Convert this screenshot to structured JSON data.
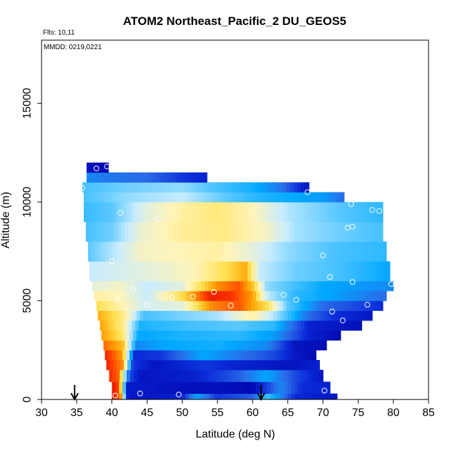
{
  "chart_data": {
    "type": "heatmap",
    "title": "ATOM2 Northeast_Pacific_2 DU_GEOS5",
    "subtitle_flights": "Flts: 10,11",
    "subtitle_dates": "MMDD: 0219,0221",
    "xlabel": "Latitude (deg N)",
    "ylabel": "Altitude (m)",
    "xlim": [
      30,
      85
    ],
    "ylim": [
      0,
      18200
    ],
    "x_ticks": [
      "30",
      "35",
      "40",
      "45",
      "50",
      "55",
      "60",
      "65",
      "70",
      "75",
      "80",
      "85"
    ],
    "y_ticks": [
      "0",
      "5000",
      "10000",
      "15000"
    ],
    "grid": false,
    "legend": "none",
    "colormap": [
      "#0000a8",
      "#0a2ad8",
      "#2a6ae8",
      "#00a8ff",
      "#5ac8ff",
      "#c8ecff",
      "#fff4b8",
      "#ffe050",
      "#ffa000",
      "#ff4000",
      "#d80000"
    ],
    "marker_latitudes": [
      34.7,
      61.2
    ],
    "bands": [
      {
        "alt": [
          0,
          300
        ],
        "lat": [
          40.0,
          72.0
        ],
        "stops": [
          [
            40.0,
            0.98
          ],
          [
            41.2,
            0.86
          ],
          [
            42.3,
            0.05
          ],
          [
            50,
            0.08
          ],
          [
            52,
            0.3
          ],
          [
            55,
            0.12
          ],
          [
            60,
            0.18
          ],
          [
            62,
            0.38
          ],
          [
            66,
            0.1
          ],
          [
            72,
            0.05
          ]
        ]
      },
      {
        "alt": [
          300,
          900
        ],
        "lat": [
          40.0,
          71.0
        ],
        "stops": [
          [
            40.0,
            0.97
          ],
          [
            41.0,
            0.9
          ],
          [
            42.2,
            0.07
          ],
          [
            50,
            0.04
          ],
          [
            56,
            0.04
          ],
          [
            60,
            0.02
          ],
          [
            64,
            0.25
          ],
          [
            67,
            0.1
          ],
          [
            71,
            0.08
          ]
        ]
      },
      {
        "alt": [
          900,
          1500
        ],
        "lat": [
          39.6,
          70.0
        ],
        "stops": [
          [
            39.6,
            0.93
          ],
          [
            41.0,
            0.86
          ],
          [
            42.5,
            0.15
          ],
          [
            44,
            0.05
          ],
          [
            52,
            0.08
          ],
          [
            58,
            0.18
          ],
          [
            62,
            0.3
          ],
          [
            66,
            0.15
          ],
          [
            70,
            0.05
          ]
        ]
      },
      {
        "alt": [
          1500,
          2000
        ],
        "lat": [
          39.2,
          69.5
        ],
        "stops": [
          [
            39.2,
            0.95
          ],
          [
            41.5,
            0.82
          ],
          [
            43.0,
            0.12
          ],
          [
            46,
            0.05
          ],
          [
            53,
            0.12
          ],
          [
            58,
            0.08
          ],
          [
            62,
            0.06
          ],
          [
            66,
            0.05
          ],
          [
            69.5,
            0.08
          ]
        ]
      },
      {
        "alt": [
          2000,
          2500
        ],
        "lat": [
          39.0,
          69.0
        ],
        "stops": [
          [
            39.0,
            0.94
          ],
          [
            41.5,
            0.8
          ],
          [
            43.2,
            0.1
          ],
          [
            47,
            0.12
          ],
          [
            53,
            0.3
          ],
          [
            58,
            0.22
          ],
          [
            63,
            0.15
          ],
          [
            66,
            0.06
          ],
          [
            69,
            0.03
          ]
        ]
      },
      {
        "alt": [
          2500,
          3000
        ],
        "lat": [
          38.8,
          70.5
        ],
        "stops": [
          [
            38.8,
            0.86
          ],
          [
            41.5,
            0.76
          ],
          [
            43.5,
            0.25
          ],
          [
            48,
            0.3
          ],
          [
            55,
            0.32
          ],
          [
            62,
            0.25
          ],
          [
            66,
            0.05
          ],
          [
            70.5,
            0.03
          ]
        ]
      },
      {
        "alt": [
          3000,
          3500
        ],
        "lat": [
          38.5,
          72.5
        ],
        "stops": [
          [
            38.5,
            0.8
          ],
          [
            41.5,
            0.68
          ],
          [
            43.8,
            0.3
          ],
          [
            50,
            0.33
          ],
          [
            58,
            0.35
          ],
          [
            63,
            0.28
          ],
          [
            68,
            0.08
          ],
          [
            72.5,
            0.02
          ]
        ]
      },
      {
        "alt": [
          3500,
          4000
        ],
        "lat": [
          38.3,
          75.5
        ],
        "stops": [
          [
            38.3,
            0.8
          ],
          [
            41.5,
            0.65
          ],
          [
            44.0,
            0.33
          ],
          [
            52,
            0.38
          ],
          [
            58,
            0.4
          ],
          [
            63,
            0.35
          ],
          [
            68,
            0.08
          ],
          [
            75.5,
            0.04
          ]
        ]
      },
      {
        "alt": [
          4000,
          4500
        ],
        "lat": [
          38.0,
          77.0
        ],
        "stops": [
          [
            38.0,
            0.78
          ],
          [
            41.5,
            0.66
          ],
          [
            44.5,
            0.38
          ],
          [
            55,
            0.47
          ],
          [
            60,
            0.62
          ],
          [
            63,
            0.48
          ],
          [
            68,
            0.2
          ],
          [
            72,
            0.1
          ],
          [
            77,
            0.06
          ]
        ]
      },
      {
        "alt": [
          4500,
          5000
        ],
        "lat": [
          37.8,
          78.5
        ],
        "stops": [
          [
            37.8,
            0.7
          ],
          [
            41.0,
            0.62
          ],
          [
            44.5,
            0.52
          ],
          [
            50,
            0.55
          ],
          [
            54,
            0.82
          ],
          [
            58,
            0.88
          ],
          [
            62,
            0.7
          ],
          [
            65,
            0.4
          ],
          [
            70,
            0.2
          ],
          [
            78.5,
            0.1
          ]
        ]
      },
      {
        "alt": [
          5000,
          5500
        ],
        "lat": [
          37.5,
          79.0
        ],
        "stops": [
          [
            37.5,
            0.62
          ],
          [
            41.0,
            0.6
          ],
          [
            45,
            0.5
          ],
          [
            50,
            0.7
          ],
          [
            54,
            0.95
          ],
          [
            57,
            0.92
          ],
          [
            60,
            0.8
          ],
          [
            62,
            0.5
          ],
          [
            66,
            0.35
          ],
          [
            72,
            0.28
          ],
          [
            79,
            0.2
          ]
        ]
      },
      {
        "alt": [
          5500,
          6000
        ],
        "lat": [
          37.2,
          80.0
        ],
        "stops": [
          [
            37.2,
            0.55
          ],
          [
            41.0,
            0.58
          ],
          [
            45,
            0.5
          ],
          [
            50,
            0.55
          ],
          [
            55,
            0.82
          ],
          [
            58,
            0.88
          ],
          [
            60,
            0.75
          ],
          [
            62,
            0.45
          ],
          [
            70,
            0.3
          ],
          [
            80,
            0.25
          ]
        ]
      },
      {
        "alt": [
          6000,
          7000
        ],
        "lat": [
          36.8,
          79.5
        ],
        "stops": [
          [
            36.8,
            0.5
          ],
          [
            40,
            0.52
          ],
          [
            45,
            0.55
          ],
          [
            52,
            0.6
          ],
          [
            57,
            0.72
          ],
          [
            59,
            0.78
          ],
          [
            61,
            0.5
          ],
          [
            66,
            0.42
          ],
          [
            72,
            0.38
          ],
          [
            79.5,
            0.3
          ]
        ]
      },
      {
        "alt": [
          7000,
          8000
        ],
        "lat": [
          36.6,
          79.0
        ],
        "stops": [
          [
            36.6,
            0.4
          ],
          [
            40,
            0.48
          ],
          [
            44,
            0.58
          ],
          [
            50,
            0.6
          ],
          [
            55,
            0.62
          ],
          [
            60,
            0.55
          ],
          [
            65,
            0.45
          ],
          [
            72,
            0.38
          ],
          [
            79,
            0.35
          ]
        ]
      },
      {
        "alt": [
          8000,
          9000
        ],
        "lat": [
          36.3,
          78.5
        ],
        "stops": [
          [
            36.3,
            0.38
          ],
          [
            40,
            0.42
          ],
          [
            44,
            0.56
          ],
          [
            50,
            0.63
          ],
          [
            56,
            0.65
          ],
          [
            62,
            0.58
          ],
          [
            66,
            0.47
          ],
          [
            72,
            0.42
          ],
          [
            78.5,
            0.38
          ]
        ]
      },
      {
        "alt": [
          9000,
          10000
        ],
        "lat": [
          36.0,
          78.5
        ],
        "stops": [
          [
            36.0,
            0.36
          ],
          [
            40,
            0.4
          ],
          [
            45,
            0.55
          ],
          [
            50,
            0.62
          ],
          [
            55,
            0.66
          ],
          [
            60,
            0.6
          ],
          [
            65,
            0.48
          ],
          [
            72,
            0.4
          ],
          [
            78.5,
            0.35
          ]
        ]
      },
      {
        "alt": [
          10000,
          10500
        ],
        "lat": [
          36.0,
          73.0
        ],
        "stops": [
          [
            36.0,
            0.38
          ],
          [
            42,
            0.45
          ],
          [
            50,
            0.5
          ],
          [
            55,
            0.42
          ],
          [
            60,
            0.35
          ],
          [
            66,
            0.3
          ],
          [
            70,
            0.28
          ],
          [
            73,
            0.2
          ]
        ]
      },
      {
        "alt": [
          10500,
          11000
        ],
        "lat": [
          35.8,
          68.0
        ],
        "stops": [
          [
            35.8,
            0.38
          ],
          [
            42,
            0.42
          ],
          [
            50,
            0.45
          ],
          [
            55,
            0.38
          ],
          [
            60,
            0.32
          ],
          [
            64,
            0.22
          ],
          [
            68,
            0.05
          ]
        ]
      },
      {
        "alt": [
          11000,
          11500
        ],
        "lat": [
          36.4,
          53.5
        ],
        "stops": [
          [
            36.4,
            0.25
          ],
          [
            40,
            0.22
          ],
          [
            45,
            0.2
          ],
          [
            50,
            0.12
          ],
          [
            53.5,
            0.08
          ]
        ]
      },
      {
        "alt": [
          11500,
          12000
        ],
        "lat": [
          36.4,
          39.5
        ],
        "stops": [
          [
            36.4,
            0.05
          ],
          [
            38,
            0.02
          ],
          [
            39.5,
            0.02
          ]
        ]
      }
    ],
    "sample_points": [
      [
        37.8,
        11700
      ],
      [
        39.3,
        11800
      ],
      [
        40.5,
        11700
      ],
      [
        35.8,
        10700
      ],
      [
        67.8,
        10500
      ],
      [
        74.0,
        9900
      ],
      [
        77.0,
        9600
      ],
      [
        78.0,
        9550
      ],
      [
        41.2,
        9450
      ],
      [
        46.5,
        9150
      ],
      [
        73.5,
        8700
      ],
      [
        74.2,
        8750
      ],
      [
        70.0,
        7300
      ],
      [
        40.0,
        7000
      ],
      [
        71.0,
        6200
      ],
      [
        74.2,
        5950
      ],
      [
        79.7,
        5850
      ],
      [
        43.0,
        5600
      ],
      [
        54.5,
        5450
      ],
      [
        51.5,
        5200
      ],
      [
        48.5,
        5150
      ],
      [
        64.4,
        5300
      ],
      [
        40.8,
        5050
      ],
      [
        66.2,
        5050
      ],
      [
        45.0,
        4800
      ],
      [
        56.9,
        4750
      ],
      [
        76.3,
        4800
      ],
      [
        71.3,
        4450
      ],
      [
        72.8,
        4000
      ],
      [
        70.6,
        1950
      ],
      [
        70.5,
        1750
      ],
      [
        71.5,
        500
      ],
      [
        70.2,
        450
      ],
      [
        40.5,
        200
      ],
      [
        44.0,
        300
      ],
      [
        49.5,
        250
      ]
    ]
  }
}
